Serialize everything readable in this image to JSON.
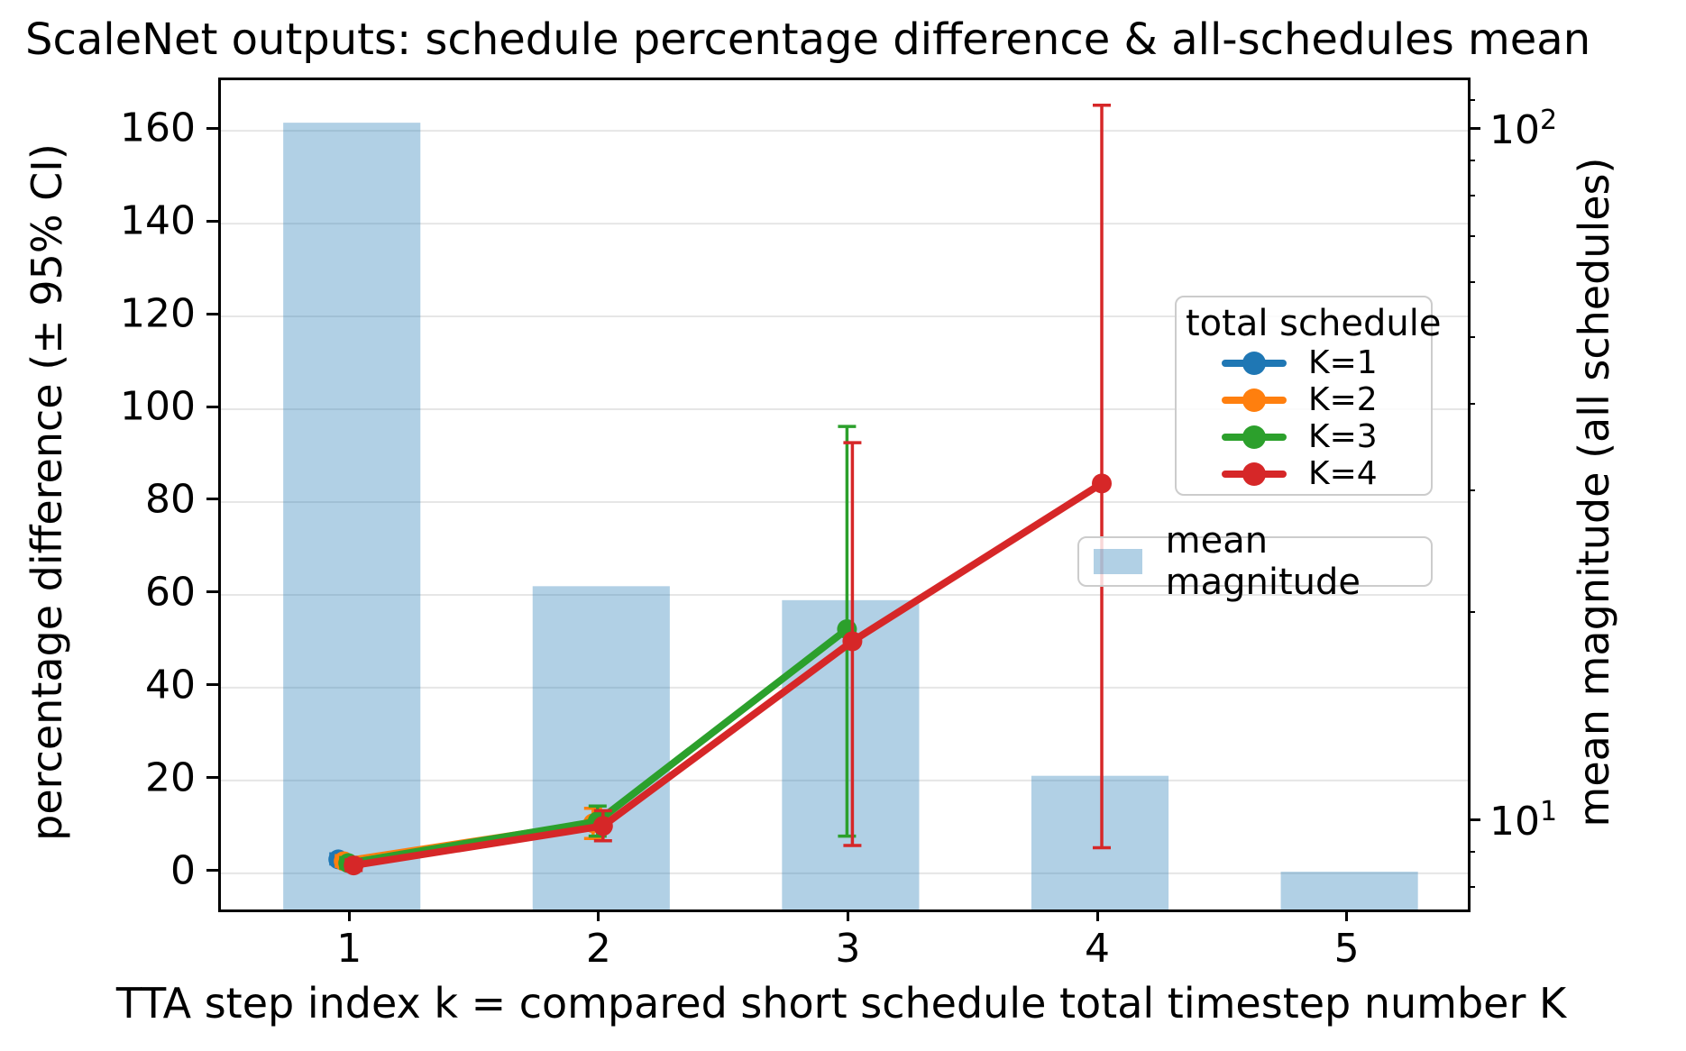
{
  "title": "ScaleNet outputs: schedule percentage difference & all-schedules mean",
  "axes": {
    "x": {
      "label": "TTA step index k = compared short schedule total timestep number K",
      "tick_labels": [
        "1",
        "2",
        "3",
        "4",
        "5"
      ],
      "range": [
        0.475,
        5.475
      ]
    },
    "left_y": {
      "label": "percentage difference (± 95% CI)",
      "tick_values": [
        0,
        20,
        40,
        60,
        80,
        100,
        120,
        140,
        160
      ],
      "range": [
        -7.8,
        170.9
      ],
      "grid": true
    },
    "right_y": {
      "label": "mean magnitude (all schedules)",
      "scale": "log",
      "major_ticks": [
        {
          "value": 10,
          "base": "10",
          "exp": "1"
        },
        {
          "value": 100,
          "base": "10",
          "exp": "2"
        }
      ],
      "minor_tick_values": [
        8,
        9,
        20,
        30,
        40,
        50,
        60,
        70,
        80,
        90,
        110
      ],
      "range_exp": [
        0.8748,
        2.0743
      ]
    }
  },
  "legends": {
    "schedule": {
      "title": "total schedule"
    },
    "magnitude": {
      "label": "mean magnitude"
    }
  },
  "colors": {
    "bar_fill": "rgba(31,119,180,0.35)",
    "grid": "#e6e6e6",
    "spine": "#000000"
  },
  "chart_data": {
    "type": "bar",
    "note": "bars = mean magnitude on right log axis; lines = errorbar series on left linear axis",
    "categories": [
      1,
      2,
      3,
      4,
      5
    ],
    "bars": {
      "name": "mean magnitude",
      "axis": "right_log",
      "values": [
        103,
        22,
        21,
        11.7,
        8.5
      ],
      "bar_width_units": 0.55
    },
    "series": [
      {
        "name": "K=1",
        "color": "#1f77b4",
        "points": [
          {
            "x": 1,
            "y": 3.0,
            "lo": 2.0,
            "hi": 4.2
          }
        ]
      },
      {
        "name": "K=2",
        "color": "#ff7f0e",
        "points": [
          {
            "x": 1,
            "y": 2.6,
            "lo": 1.5,
            "hi": 3.8
          },
          {
            "x": 2,
            "y": 10.8,
            "lo": 7.5,
            "hi": 14.0
          }
        ]
      },
      {
        "name": "K=3",
        "color": "#2ca02c",
        "points": [
          {
            "x": 1,
            "y": 2.2,
            "lo": 1.1,
            "hi": 3.4
          },
          {
            "x": 2,
            "y": 11.2,
            "lo": 8.0,
            "hi": 14.5
          },
          {
            "x": 3,
            "y": 52.6,
            "lo": 8.0,
            "hi": 96.3
          }
        ]
      },
      {
        "name": "K=4",
        "color": "#d62728",
        "points": [
          {
            "x": 1,
            "y": 1.7,
            "lo": 0.6,
            "hi": 2.9
          },
          {
            "x": 2,
            "y": 10.2,
            "lo": 7.0,
            "hi": 13.5
          },
          {
            "x": 3,
            "y": 50.0,
            "lo": 6.0,
            "hi": 92.8
          },
          {
            "x": 4,
            "y": 84.0,
            "lo": 5.5,
            "hi": 165.5
          }
        ]
      }
    ]
  }
}
